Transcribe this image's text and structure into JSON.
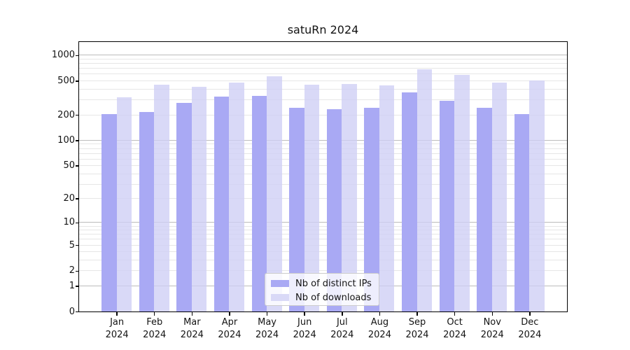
{
  "chart_data": {
    "type": "bar",
    "title": "satuRn 2024",
    "categories": [
      "Jan\n2024",
      "Feb\n2024",
      "Mar\n2024",
      "Apr\n2024",
      "May\n2024",
      "Jun\n2024",
      "Jul\n2024",
      "Aug\n2024",
      "Sep\n2024",
      "Oct\n2024",
      "Nov\n2024",
      "Dec\n2024"
    ],
    "series": [
      {
        "name": "Nb of distinct IPs",
        "color": "#a9a9f4",
        "values": [
          205,
          215,
          275,
          330,
          335,
          243,
          232,
          240,
          365,
          295,
          240,
          205
        ]
      },
      {
        "name": "Nb of downloads",
        "color": "#d9d9f7",
        "values": [
          320,
          450,
          430,
          480,
          565,
          455,
          460,
          440,
          680,
          585,
          475,
          510
        ]
      }
    ],
    "xlabel": "",
    "ylabel": "",
    "y_axis": {
      "scale": "log1p",
      "ticks": [
        0,
        1,
        2,
        5,
        10,
        20,
        50,
        100,
        200,
        500,
        1000
      ],
      "ylim": [
        0,
        1430
      ],
      "grid": true
    },
    "legend": {
      "position": "inside-lower-center",
      "items": [
        "Nb of distinct IPs",
        "Nb of downloads"
      ]
    }
  },
  "colors": {
    "distinct_ips": "#a9a9f4",
    "downloads": "#d9d9f7",
    "grid_major": "#bcbcbc",
    "grid_minor": "#e6e6e6",
    "axis": "#000000"
  }
}
